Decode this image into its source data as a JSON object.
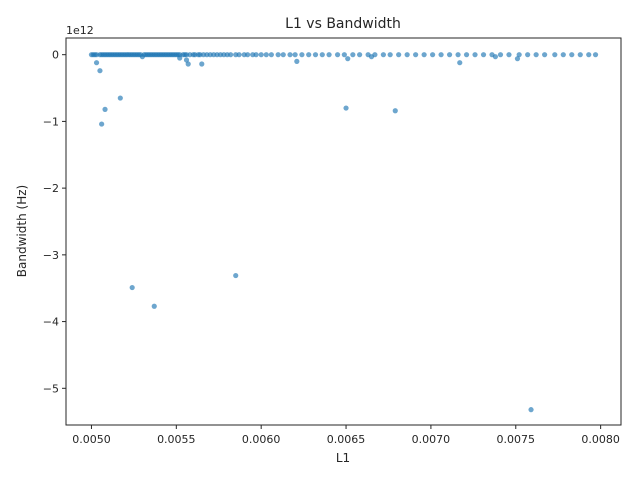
{
  "chart_data": {
    "type": "scatter",
    "title": "L1 vs Bandwidth",
    "xlabel": "L1",
    "ylabel": "Bandwidth (Hz)",
    "y_offset_label": "1e12",
    "y_scale_factor": 1000000000000.0,
    "xlim": [
      0.00485,
      0.00812
    ],
    "ylim": [
      -5.55,
      0.25
    ],
    "x_ticks": [
      0.005,
      0.0055,
      0.006,
      0.0065,
      0.007,
      0.0075,
      0.008
    ],
    "x_tick_labels": [
      "0.0050",
      "0.0055",
      "0.0060",
      "0.0065",
      "0.0070",
      "0.0075",
      "0.0080"
    ],
    "y_ticks": [
      0,
      -1,
      -2,
      -3,
      -4,
      -5
    ],
    "y_tick_labels": [
      "0",
      "−1",
      "−2",
      "−3",
      "−4",
      "−5"
    ],
    "grid": false,
    "marker_color": "#1f77b4",
    "marker_alpha": 0.65,
    "series": [
      {
        "x": [
          0.005,
          0.00501,
          0.00502,
          0.00503,
          0.00505,
          0.00506,
          0.00507,
          0.00508,
          0.00509,
          0.0051,
          0.00511,
          0.00512,
          0.00513,
          0.00514,
          0.00515,
          0.00516,
          0.00517,
          0.00518,
          0.00519,
          0.0052,
          0.00521,
          0.00522,
          0.00523,
          0.00524,
          0.00525,
          0.00526,
          0.00527,
          0.00528,
          0.00529,
          0.00531,
          0.00532,
          0.00533,
          0.00534,
          0.00535,
          0.00536,
          0.00537,
          0.00538,
          0.00539,
          0.0054,
          0.00541,
          0.00542,
          0.00543,
          0.00544,
          0.00545,
          0.00546,
          0.00547,
          0.00548,
          0.00549,
          0.0055,
          0.00551,
          0.00552,
          0.00554,
          0.00555,
          0.00556,
          0.00558,
          0.0056,
          0.00561,
          0.00563,
          0.00564,
          0.00566,
          0.00568,
          0.0057,
          0.00572,
          0.00574,
          0.00576,
          0.00578,
          0.0058,
          0.00582,
          0.00585,
          0.00587,
          0.0059,
          0.00592,
          0.00595,
          0.00597,
          0.006,
          0.00603,
          0.00606,
          0.0061,
          0.00613,
          0.00617,
          0.0062,
          0.00624,
          0.00628,
          0.00632,
          0.00636,
          0.0064,
          0.00645,
          0.00649,
          0.00654,
          0.00658,
          0.00663,
          0.00667,
          0.00672,
          0.00676,
          0.00681,
          0.00686,
          0.00691,
          0.00696,
          0.00701,
          0.00706,
          0.00711,
          0.00716,
          0.00721,
          0.00726,
          0.00731,
          0.00736,
          0.00741,
          0.00746,
          0.00752,
          0.00757,
          0.00762,
          0.00767,
          0.00773,
          0.00778,
          0.00783,
          0.00788,
          0.00793,
          0.00797,
          0.00503,
          0.00505,
          0.00506,
          0.00508,
          0.00517,
          0.00524,
          0.0053,
          0.00537,
          0.00552,
          0.00556,
          0.00557,
          0.00565,
          0.00585,
          0.00621,
          0.0065,
          0.00651,
          0.00665,
          0.00679,
          0.00717,
          0.00738,
          0.00751,
          0.00759
        ],
        "y": [
          0,
          0,
          0,
          0,
          0,
          0,
          0,
          0,
          0,
          0,
          0,
          0,
          0,
          0,
          0,
          0,
          0,
          0,
          0,
          0,
          0,
          0,
          0,
          0,
          0,
          0,
          0,
          0,
          0,
          0,
          0,
          0,
          0,
          0,
          0,
          0,
          0,
          0,
          0,
          0,
          0,
          0,
          0,
          0,
          0,
          0,
          0,
          0,
          0,
          0,
          0,
          0,
          0,
          0,
          0,
          0,
          0,
          0,
          0,
          0,
          0,
          0,
          0,
          0,
          0,
          0,
          0,
          0,
          0,
          0,
          0,
          0,
          0,
          0,
          0,
          0,
          0,
          0,
          0,
          0,
          0,
          0,
          0,
          0,
          0,
          0,
          0,
          0,
          0,
          0,
          0,
          0,
          0,
          0,
          0,
          0,
          0,
          0,
          0,
          0,
          0,
          0,
          0,
          0,
          0,
          0,
          0,
          0,
          0,
          0,
          0,
          0,
          0,
          0,
          0,
          0,
          0,
          0,
          -0.12,
          -0.24,
          -1.04,
          -0.82,
          -0.65,
          -3.49,
          -0.03,
          -3.77,
          -0.05,
          -0.08,
          -0.14,
          -0.14,
          -3.31,
          -0.1,
          -0.8,
          -0.06,
          -0.03,
          -0.84,
          -0.12,
          -0.03,
          -0.06,
          -5.32
        ]
      }
    ]
  }
}
